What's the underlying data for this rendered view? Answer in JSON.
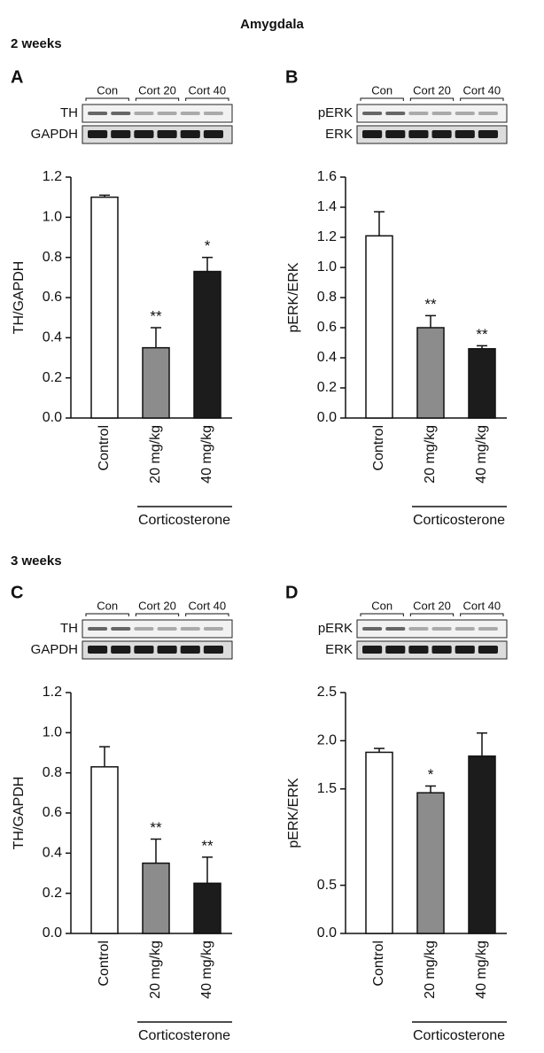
{
  "title": "Amygdala",
  "sections": [
    "2 weeks",
    "3 weeks"
  ],
  "chart_data": [
    {
      "type": "bar",
      "panel": "A",
      "section": 0,
      "blot": {
        "groups": [
          "Con",
          "Cort 20",
          "Cort 40"
        ],
        "rows": [
          "TH",
          "GAPDH"
        ]
      },
      "ylabel": "TH/GAPDH",
      "categories": [
        "Control",
        "20 mg/kg",
        "40 mg/kg"
      ],
      "group_label": "Corticosterone",
      "values": [
        1.1,
        0.35,
        0.73
      ],
      "errors": [
        0.01,
        0.1,
        0.07
      ],
      "annotations": [
        null,
        "**",
        "*"
      ],
      "colors": [
        "#ffffff",
        "#8c8c8c",
        "#1c1c1c"
      ],
      "ylim": [
        0,
        1.2
      ],
      "yticks": [
        {
          "value": 0,
          "label": "0.0"
        },
        0.2,
        0.4,
        0.6,
        0.8,
        {
          "value": 1,
          "label": "1.0"
        },
        1.2
      ]
    },
    {
      "type": "bar",
      "panel": "B",
      "section": 0,
      "blot": {
        "groups": [
          "Con",
          "Cort 20",
          "Cort 40"
        ],
        "rows": [
          "pERK",
          "ERK"
        ]
      },
      "ylabel": "pERK/ERK",
      "categories": [
        "Control",
        "20 mg/kg",
        "40 mg/kg"
      ],
      "group_label": "Corticosterone",
      "values": [
        1.21,
        0.6,
        0.46
      ],
      "errors": [
        0.16,
        0.08,
        0.02
      ],
      "annotations": [
        null,
        "**",
        "**"
      ],
      "colors": [
        "#ffffff",
        "#8c8c8c",
        "#1c1c1c"
      ],
      "ylim": [
        0,
        1.6
      ],
      "yticks": [
        {
          "value": 0,
          "label": "0.0"
        },
        0.2,
        0.4,
        0.6,
        0.8,
        {
          "value": 1,
          "label": "1.0"
        },
        1.2,
        1.4,
        1.6
      ]
    },
    {
      "type": "bar",
      "panel": "C",
      "section": 1,
      "blot": {
        "groups": [
          "Con",
          "Cort 20",
          "Cort 40"
        ],
        "rows": [
          "TH",
          "GAPDH"
        ]
      },
      "ylabel": "TH/GAPDH",
      "categories": [
        "Control",
        "20 mg/kg",
        "40 mg/kg"
      ],
      "group_label": "Corticosterone",
      "values": [
        0.83,
        0.35,
        0.25
      ],
      "errors": [
        0.1,
        0.12,
        0.13
      ],
      "annotations": [
        null,
        "**",
        "**"
      ],
      "colors": [
        "#ffffff",
        "#8c8c8c",
        "#1c1c1c"
      ],
      "ylim": [
        0,
        1.2
      ],
      "yticks": [
        {
          "value": 0,
          "label": "0.0"
        },
        0.2,
        0.4,
        0.6,
        0.8,
        {
          "value": 1,
          "label": "1.0"
        },
        1.2
      ]
    },
    {
      "type": "bar",
      "panel": "D",
      "section": 1,
      "blot": {
        "groups": [
          "Con",
          "Cort 20",
          "Cort 40"
        ],
        "rows": [
          "pERK",
          "ERK"
        ]
      },
      "ylabel": "pERK/ERK",
      "categories": [
        "Control",
        "20 mg/kg",
        "40 mg/kg"
      ],
      "group_label": "Corticosterone",
      "values": [
        1.88,
        1.46,
        1.84
      ],
      "errors": [
        0.04,
        0.07,
        0.24
      ],
      "annotations": [
        null,
        "*",
        null
      ],
      "colors": [
        "#ffffff",
        "#8c8c8c",
        "#1c1c1c"
      ],
      "ylim": [
        0,
        2.5
      ],
      "yticks": [
        {
          "value": 0,
          "label": "0.0"
        },
        0.5,
        1.5,
        {
          "value": 2,
          "label": "2.0"
        },
        2.5
      ]
    }
  ]
}
